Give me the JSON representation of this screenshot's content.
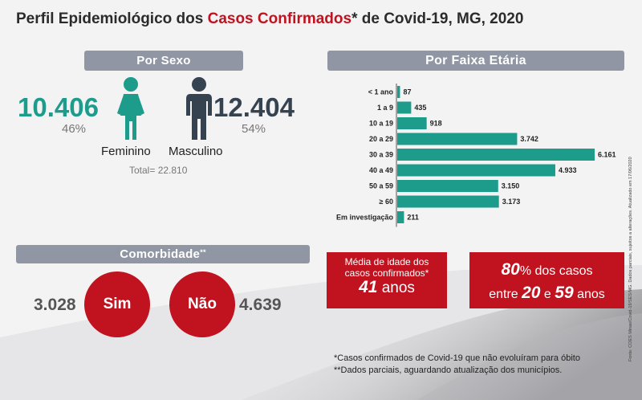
{
  "title": {
    "prefix": "Perfil Epidemiológico dos ",
    "highlight": "Casos Confirmados",
    "suffix": "* de Covid-19, MG, 2020"
  },
  "colors": {
    "teal": "#1d9c8c",
    "dark": "#35424f",
    "red": "#c1121f",
    "pill": "#9096a3"
  },
  "sexo": {
    "header": "Por Sexo",
    "feminino": {
      "value": "10.406",
      "pct": "46%",
      "label": "Feminino",
      "icon": "female-icon"
    },
    "masculino": {
      "value": "12.404",
      "pct": "54%",
      "label": "Masculino",
      "icon": "male-icon"
    },
    "total": "Total= 22.810"
  },
  "faixa_etaria": {
    "header": "Por Faixa Etária"
  },
  "chart_data": {
    "type": "bar",
    "orientation": "horizontal",
    "title": "Por Faixa Etária",
    "categories": [
      "< 1 ano",
      "1 a 9",
      "10 a 19",
      "20 a 29",
      "30 a 39",
      "40 a 49",
      "50 a 59",
      "≥ 60",
      "Em investigação"
    ],
    "values": [
      87,
      435,
      918,
      3742,
      6161,
      4933,
      3150,
      3173,
      211
    ],
    "value_labels": [
      "87",
      "435",
      "918",
      "3.742",
      "6.161",
      "4.933",
      "3.150",
      "3.173",
      "211"
    ],
    "xlim": [
      0,
      6161
    ],
    "color": "#1d9c8c"
  },
  "comorbidade": {
    "header": "Comorbidade",
    "header_sup": "**",
    "sim": {
      "label": "Sim",
      "value": "3.028"
    },
    "nao": {
      "label": "Não",
      "value": "4.639"
    }
  },
  "media_idade": {
    "line1": "Média de idade dos",
    "line2": "casos confirmados*",
    "value": "41",
    "unit": " anos"
  },
  "oitenta": {
    "pct": "80",
    "pct_rest": "% dos casos",
    "entre": "entre ",
    "from": "20",
    "and": " e ",
    "to": "59",
    "unit": " anos"
  },
  "footnotes": {
    "note1": "*Casos confirmados de Covid-19 que não evoluíram para óbito",
    "note2": "**Dados parciais, aguardando atualização dos municípios."
  },
  "source": "Fonte: COES Minas/Covid-19/SES/MG. Dados parciais, sujeitos a alterações. Atualizado em 17/06/2020"
}
